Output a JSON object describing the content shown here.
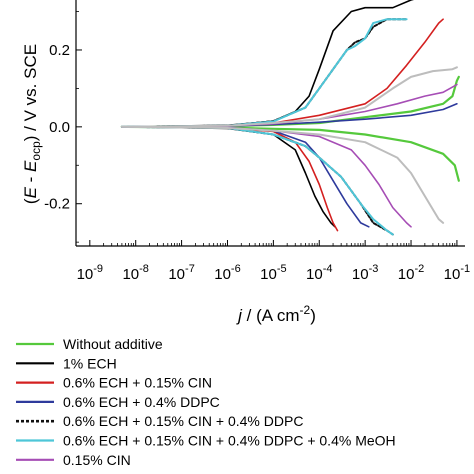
{
  "chart_data": {
    "type": "line",
    "x_scale": "log",
    "x_ticks": [
      {
        "value": 1e-09,
        "base": "10",
        "exp": "-9"
      },
      {
        "value": 1e-08,
        "base": "10",
        "exp": "-8"
      },
      {
        "value": 1e-07,
        "base": "10",
        "exp": "-7"
      },
      {
        "value": 1e-06,
        "base": "10",
        "exp": "-6"
      },
      {
        "value": 1e-05,
        "base": "10",
        "exp": "-5"
      },
      {
        "value": 0.0001,
        "base": "10",
        "exp": "-4"
      },
      {
        "value": 0.001,
        "base": "10",
        "exp": "-3"
      },
      {
        "value": 0.01,
        "base": "10",
        "exp": "-2"
      },
      {
        "value": 0.1,
        "base": "10",
        "exp": "-1"
      }
    ],
    "y_ticks": [
      {
        "value": 0.2,
        "label": "0.2"
      },
      {
        "value": 0.0,
        "label": "0.0"
      },
      {
        "value": -0.2,
        "label": "-0.2"
      }
    ],
    "xlim": [
      5e-10,
      0.15
    ],
    "ylim": [
      -0.31,
      0.33
    ],
    "xlabel": {
      "italic": "j",
      "main": " / (A cm",
      "sup": "-2",
      "end": ")"
    },
    "ylabel": {
      "open": "(",
      "e1": "E",
      "mid": " - ",
      "e2": "E",
      "sub": "ocp",
      "close": ") / V vs. SCE"
    },
    "grid": false,
    "legend_position": "bottom",
    "series": [
      {
        "name": "Without additive",
        "color": "#55c93c",
        "dashed": false,
        "width": 2.2,
        "anodic": [
          [
            5e-09,
            0
          ],
          [
            1e-06,
            0.002
          ],
          [
            1e-05,
            0.005
          ],
          [
            0.0001,
            0.01
          ],
          [
            0.001,
            0.025
          ],
          [
            0.01,
            0.04
          ],
          [
            0.05,
            0.06
          ],
          [
            0.08,
            0.08
          ],
          [
            0.1,
            0.12
          ],
          [
            0.11,
            0.13
          ]
        ],
        "cathodic": [
          [
            5e-09,
            0
          ],
          [
            1e-06,
            -0.002
          ],
          [
            1e-05,
            -0.005
          ],
          [
            0.0001,
            -0.008
          ],
          [
            0.001,
            -0.02
          ],
          [
            0.01,
            -0.04
          ],
          [
            0.05,
            -0.07
          ],
          [
            0.09,
            -0.1
          ],
          [
            0.11,
            -0.14
          ]
        ]
      },
      {
        "name": "1% ECH",
        "color": "#000000",
        "dashed": false,
        "width": 1.6,
        "anodic": [
          [
            5e-09,
            0
          ],
          [
            1e-06,
            0.004
          ],
          [
            1e-05,
            0.015
          ],
          [
            3e-05,
            0.04
          ],
          [
            6e-05,
            0.08
          ],
          [
            0.0001,
            0.15
          ],
          [
            0.0002,
            0.25
          ],
          [
            0.0005,
            0.3
          ],
          [
            0.001,
            0.31
          ],
          [
            0.004,
            0.31
          ],
          [
            0.01,
            0.33
          ],
          [
            0.02,
            0.34
          ],
          [
            0.03,
            0.35
          ]
        ],
        "cathodic": [
          [
            5e-09,
            0
          ],
          [
            1e-06,
            -0.004
          ],
          [
            1e-05,
            -0.02
          ],
          [
            3e-05,
            -0.06
          ],
          [
            5e-05,
            -0.12
          ],
          [
            8e-05,
            -0.18
          ],
          [
            0.00012,
            -0.22
          ],
          [
            0.00018,
            -0.25
          ],
          [
            0.00022,
            -0.26
          ]
        ]
      },
      {
        "name": "0.6% ECH + 0.15% CIN",
        "color": "#d42020",
        "dashed": false,
        "width": 1.6,
        "anodic": [
          [
            5e-09,
            0
          ],
          [
            1e-06,
            0.003
          ],
          [
            1e-05,
            0.01
          ],
          [
            0.0001,
            0.03
          ],
          [
            0.001,
            0.06
          ],
          [
            0.003,
            0.1
          ],
          [
            0.008,
            0.16
          ],
          [
            0.02,
            0.22
          ],
          [
            0.04,
            0.27
          ],
          [
            0.05,
            0.28
          ]
        ],
        "cathodic": [
          [
            5e-09,
            0
          ],
          [
            1e-06,
            -0.003
          ],
          [
            1e-05,
            -0.012
          ],
          [
            3e-05,
            -0.04
          ],
          [
            6e-05,
            -0.09
          ],
          [
            0.0001,
            -0.15
          ],
          [
            0.00015,
            -0.21
          ],
          [
            0.0002,
            -0.25
          ],
          [
            0.00025,
            -0.27
          ]
        ]
      },
      {
        "name": "0.6% ECH + 0.4% DDPC",
        "color": "#2e3a9c",
        "dashed": false,
        "width": 1.6,
        "anodic": [
          [
            5e-09,
            0
          ],
          [
            1e-06,
            0.002
          ],
          [
            1e-05,
            0.006
          ],
          [
            0.0001,
            0.012
          ],
          [
            0.001,
            0.02
          ],
          [
            0.01,
            0.03
          ],
          [
            0.05,
            0.045
          ],
          [
            0.1,
            0.06
          ]
        ],
        "cathodic": [
          [
            5e-09,
            0
          ],
          [
            1e-06,
            -0.002
          ],
          [
            1e-05,
            -0.01
          ],
          [
            5e-05,
            -0.04
          ],
          [
            0.0001,
            -0.08
          ],
          [
            0.0002,
            -0.14
          ],
          [
            0.0004,
            -0.2
          ],
          [
            0.0008,
            -0.25
          ],
          [
            0.0012,
            -0.26
          ]
        ]
      },
      {
        "name": "0.6% ECH + 0.15% CIN + 0.4% DDPC",
        "color": "#111111",
        "dashed": true,
        "width": 2,
        "anodic": [
          [
            5e-09,
            0
          ],
          [
            1e-06,
            0.003
          ],
          [
            1e-05,
            0.015
          ],
          [
            5e-05,
            0.05
          ],
          [
            0.0001,
            0.1
          ],
          [
            0.0002,
            0.15
          ],
          [
            0.0004,
            0.2
          ],
          [
            0.0006,
            0.22
          ],
          [
            0.001,
            0.23
          ],
          [
            0.0015,
            0.26
          ],
          [
            0.003,
            0.28
          ],
          [
            0.008,
            0.28
          ]
        ],
        "cathodic": [
          [
            5e-09,
            0
          ],
          [
            1e-06,
            -0.003
          ],
          [
            1e-05,
            -0.02
          ],
          [
            5e-05,
            -0.05
          ],
          [
            0.0001,
            -0.08
          ],
          [
            0.0003,
            -0.13
          ],
          [
            0.0008,
            -0.2
          ],
          [
            0.0015,
            -0.25
          ],
          [
            0.003,
            -0.27
          ],
          [
            0.004,
            -0.28
          ]
        ]
      },
      {
        "name": "0.6% ECH + 0.15% CIN + 0.4% DDPC + 0.4% MeOH",
        "color": "#4ec6d8",
        "dashed": false,
        "width": 2,
        "anodic": [
          [
            5e-09,
            0
          ],
          [
            1e-06,
            0.003
          ],
          [
            1e-05,
            0.014
          ],
          [
            5e-05,
            0.05
          ],
          [
            0.0001,
            0.1
          ],
          [
            0.0002,
            0.15
          ],
          [
            0.0004,
            0.2
          ],
          [
            0.0006,
            0.21
          ],
          [
            0.001,
            0.23
          ],
          [
            0.0015,
            0.27
          ],
          [
            0.003,
            0.28
          ],
          [
            0.008,
            0.28
          ]
        ],
        "cathodic": [
          [
            5e-09,
            0
          ],
          [
            1e-06,
            -0.003
          ],
          [
            1e-05,
            -0.02
          ],
          [
            5e-05,
            -0.05
          ],
          [
            0.0001,
            -0.08
          ],
          [
            0.0003,
            -0.13
          ],
          [
            0.0008,
            -0.2
          ],
          [
            0.0015,
            -0.24
          ],
          [
            0.003,
            -0.27
          ],
          [
            0.004,
            -0.28
          ]
        ]
      },
      {
        "name": "0.15% CIN",
        "color": "#a64db5",
        "dashed": false,
        "width": 1.6,
        "anodic": [
          [
            5e-09,
            0
          ],
          [
            1e-06,
            0.002
          ],
          [
            1e-05,
            0.008
          ],
          [
            0.0001,
            0.02
          ],
          [
            0.001,
            0.04
          ],
          [
            0.005,
            0.06
          ],
          [
            0.02,
            0.08
          ],
          [
            0.05,
            0.09
          ],
          [
            0.1,
            0.11
          ]
        ],
        "cathodic": [
          [
            5e-09,
            0
          ],
          [
            1e-06,
            -0.002
          ],
          [
            1e-05,
            -0.01
          ],
          [
            0.0001,
            -0.025
          ],
          [
            0.0005,
            -0.06
          ],
          [
            0.001,
            -0.1
          ],
          [
            0.002,
            -0.15
          ],
          [
            0.004,
            -0.21
          ],
          [
            0.008,
            -0.25
          ],
          [
            0.01,
            -0.26
          ]
        ]
      },
      {
        "name": "",
        "color": "#bdbdbd",
        "dashed": false,
        "width": 2,
        "anodic": [
          [
            5e-09,
            0
          ],
          [
            1e-06,
            0.003
          ],
          [
            1e-05,
            0.01
          ],
          [
            0.0001,
            0.02
          ],
          [
            0.001,
            0.05
          ],
          [
            0.004,
            0.1
          ],
          [
            0.01,
            0.13
          ],
          [
            0.03,
            0.145
          ],
          [
            0.08,
            0.15
          ],
          [
            0.1,
            0.155
          ]
        ],
        "cathodic": [
          [
            5e-09,
            0
          ],
          [
            1e-06,
            -0.003
          ],
          [
            1e-05,
            -0.01
          ],
          [
            0.0001,
            -0.02
          ],
          [
            0.001,
            -0.04
          ],
          [
            0.005,
            -0.08
          ],
          [
            0.01,
            -0.12
          ],
          [
            0.02,
            -0.18
          ],
          [
            0.04,
            -0.24
          ],
          [
            0.05,
            -0.25
          ]
        ]
      }
    ]
  }
}
